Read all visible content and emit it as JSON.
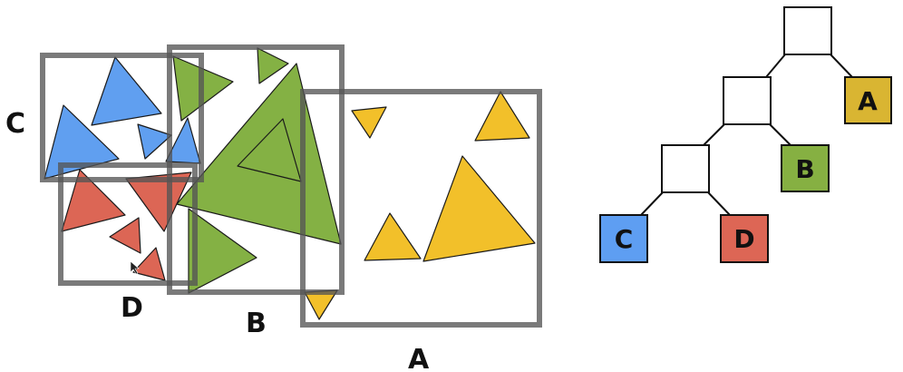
{
  "scene": {
    "volumes": [
      {
        "id": "A",
        "label": "A",
        "color": "#f2c02a"
      },
      {
        "id": "B",
        "label": "B",
        "color": "#84b144"
      },
      {
        "id": "C",
        "label": "C",
        "color": "#609ff0"
      },
      {
        "id": "D",
        "label": "D",
        "color": "#dc6655"
      }
    ]
  },
  "tree": {
    "leaves": [
      {
        "label": "A",
        "color": "#d9b532"
      },
      {
        "label": "B",
        "color": "#86b042"
      },
      {
        "label": "C",
        "color": "#5e9ef2"
      },
      {
        "label": "D",
        "color": "#dd6655"
      }
    ]
  }
}
